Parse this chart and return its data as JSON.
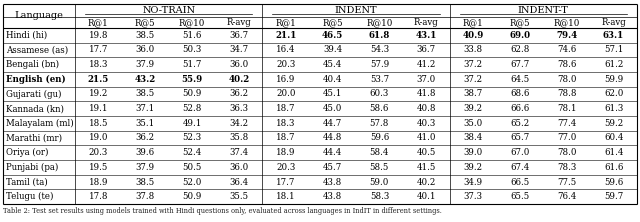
{
  "groups": [
    "No-Train",
    "Indent",
    "Indent-T"
  ],
  "sub_headers": [
    "R@1",
    "R@5",
    "R@10",
    "R-avg"
  ],
  "rows": [
    [
      "Hindi (hi)",
      19.8,
      38.5,
      51.6,
      36.7,
      21.1,
      46.5,
      61.8,
      43.1,
      40.9,
      69.0,
      79.4,
      63.1
    ],
    [
      "Assamese (as)",
      17.7,
      36.0,
      50.3,
      34.7,
      16.4,
      39.4,
      54.3,
      36.7,
      33.8,
      62.8,
      74.6,
      57.1
    ],
    [
      "Bengali (bn)",
      18.3,
      37.9,
      51.7,
      36.0,
      20.3,
      45.4,
      57.9,
      41.2,
      37.2,
      67.7,
      78.6,
      61.2
    ],
    [
      "English (en)",
      21.5,
      43.2,
      55.9,
      40.2,
      16.9,
      40.4,
      53.7,
      37.0,
      37.2,
      64.5,
      78.0,
      59.9
    ],
    [
      "Gujarati (gu)",
      19.2,
      38.5,
      50.9,
      36.2,
      20.0,
      45.1,
      60.3,
      41.8,
      38.7,
      68.6,
      78.8,
      62.0
    ],
    [
      "Kannada (kn)",
      19.1,
      37.1,
      52.8,
      36.3,
      18.7,
      45.0,
      58.6,
      40.8,
      39.2,
      66.6,
      78.1,
      61.3
    ],
    [
      "Malayalam (ml)",
      18.5,
      35.1,
      49.1,
      34.2,
      18.3,
      44.7,
      57.8,
      40.3,
      35.0,
      65.2,
      77.4,
      59.2
    ],
    [
      "Marathi (mr)",
      19.0,
      36.2,
      52.3,
      35.8,
      18.7,
      44.8,
      59.6,
      41.0,
      38.4,
      65.7,
      77.0,
      60.4
    ],
    [
      "Oriya (or)",
      20.3,
      39.6,
      52.4,
      37.4,
      18.9,
      44.4,
      58.4,
      40.5,
      39.0,
      67.0,
      78.0,
      61.4
    ],
    [
      "Punjabi (pa)",
      19.5,
      37.9,
      50.5,
      36.0,
      20.3,
      45.7,
      58.5,
      41.5,
      39.2,
      67.4,
      78.3,
      61.6
    ],
    [
      "Tamil (ta)",
      18.9,
      38.5,
      52.0,
      36.4,
      17.7,
      43.8,
      59.0,
      40.2,
      34.9,
      66.5,
      77.5,
      59.6
    ],
    [
      "Telugu (te)",
      17.8,
      37.8,
      50.9,
      35.5,
      18.1,
      43.8,
      58.3,
      40.1,
      37.3,
      65.5,
      76.4,
      59.7
    ]
  ],
  "bold_cells": {
    "0": [
      5,
      6,
      7,
      8,
      9,
      10,
      11,
      12
    ],
    "3": [
      1,
      2,
      3,
      4
    ]
  },
  "footnote": "Table 2: Test set results using models trained with Hindi questions only, evaluated across languages in IndIT in different settings.",
  "bg_color": "#ffffff",
  "font_size": 6.5,
  "header_font_size": 7.0
}
